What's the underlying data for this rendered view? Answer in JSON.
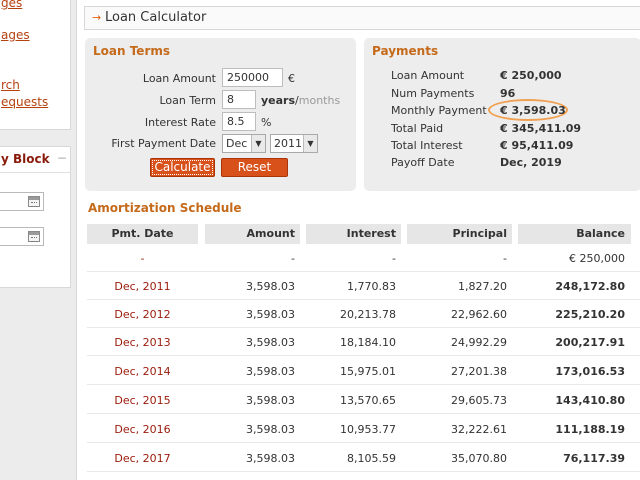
{
  "sidebar": {
    "links": [
      "ges",
      "ages",
      "rch",
      "equests"
    ],
    "block_title": "y Block",
    "collapse_symbol": "−"
  },
  "header": {
    "arrow": "→",
    "title": "Loan Calculator"
  },
  "loan_terms": {
    "title": "Loan Terms",
    "amount_label": "Loan Amount",
    "amount_value": "250000",
    "amount_unit": "€",
    "term_label": "Loan Term",
    "term_value": "8",
    "term_unit_years": "years",
    "term_unit_sep": "/",
    "term_unit_months": "months",
    "rate_label": "Interest Rate",
    "rate_value": "8.5",
    "rate_unit": "%",
    "first_payment_label": "First Payment Date",
    "month_value": "Dec",
    "year_value": "2011",
    "calculate_label": "Calculate",
    "reset_label": "Reset"
  },
  "payments": {
    "title": "Payments",
    "rows": [
      {
        "label": "Loan Amount",
        "value": "€ 250,000"
      },
      {
        "label": "Num Payments",
        "value": "96"
      },
      {
        "label": "Monthly Payment",
        "value": "€ 3,598.03"
      },
      {
        "label": "Total Paid",
        "value": "€ 345,411.09"
      },
      {
        "label": "Total Interest",
        "value": "€ 95,411.09"
      },
      {
        "label": "Payoff Date",
        "value": "Dec, 2019"
      }
    ]
  },
  "amortization": {
    "title": "Amortization Schedule",
    "headers": [
      "Pmt. Date",
      "Amount",
      "Interest",
      "Principal",
      "Balance"
    ],
    "rows": [
      [
        "-",
        "-",
        "-",
        "-",
        "€ 250,000"
      ],
      [
        "Dec, 2011",
        "3,598.03",
        "1,770.83",
        "1,827.20",
        "248,172.80"
      ],
      [
        "Dec, 2012",
        "3,598.03",
        "20,213.78",
        "22,962.60",
        "225,210.20"
      ],
      [
        "Dec, 2013",
        "3,598.03",
        "18,184.10",
        "24,992.29",
        "200,217.91"
      ],
      [
        "Dec, 2014",
        "3,598.03",
        "15,975.01",
        "27,201.38",
        "173,016.53"
      ],
      [
        "Dec, 2015",
        "3,598.03",
        "13,570.65",
        "29,605.73",
        "143,410.80"
      ],
      [
        "Dec, 2016",
        "3,598.03",
        "10,953.77",
        "32,222.61",
        "111,188.19"
      ],
      [
        "Dec, 2017",
        "3,598.03",
        "8,105.59",
        "35,070.80",
        "76,117.39"
      ]
    ]
  },
  "colors": {
    "accent": "#d8501a",
    "heading": "#c46a1a",
    "date_link": "#9a1a0a",
    "highlight_ring": "#f0a050"
  }
}
